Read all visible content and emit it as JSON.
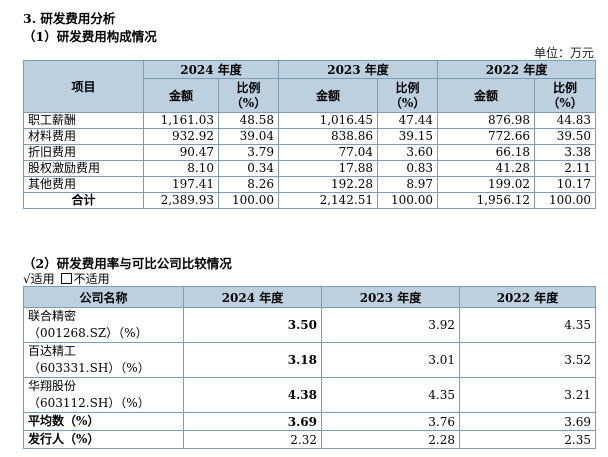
{
  "heading_main": "3.   研发费用分析",
  "heading_sub1": "（1）研发费用构成情况",
  "unit_label": "单位：万元",
  "table1": {
    "item_header": "项目",
    "years": [
      "2024 年度",
      "2023 年度",
      "2022 年度"
    ],
    "amount_header": "金额",
    "ratio_header": "比例（%）",
    "rows": [
      {
        "label": "职工薪酬",
        "v": [
          "1,161.03",
          "48.58",
          "1,016.45",
          "47.44",
          "876.98",
          "44.83"
        ]
      },
      {
        "label": "材料费用",
        "v": [
          "932.92",
          "39.04",
          "838.86",
          "39.15",
          "772.66",
          "39.50"
        ]
      },
      {
        "label": "折旧费用",
        "v": [
          "90.47",
          "3.79",
          "77.04",
          "3.60",
          "66.18",
          "3.38"
        ]
      },
      {
        "label": "股权激励费用",
        "v": [
          "8.10",
          "0.34",
          "17.88",
          "0.83",
          "41.28",
          "2.11"
        ]
      },
      {
        "label": "其他费用",
        "v": [
          "197.41",
          "8.26",
          "192.28",
          "8.97",
          "199.02",
          "10.17"
        ]
      },
      {
        "label": "合计",
        "v": [
          "2,389.93",
          "100.00",
          "2,142.51",
          "100.00",
          "1,956.12",
          "100.00"
        ]
      }
    ]
  },
  "heading_sub2": "（2）研发费用率与可比公司比较情况",
  "applicability": {
    "checked_mark": "√",
    "applicable": "适用",
    "not_applicable": "不适用"
  },
  "table2": {
    "company_header": "公司名称",
    "years": [
      "2024 年度",
      "2023 年度",
      "2022 年度"
    ],
    "rows": [
      {
        "name": "联合精密",
        "code": "（001268.SZ）（%）",
        "v": [
          "3.50",
          "3.92",
          "4.35"
        ]
      },
      {
        "name": "百达精工",
        "code": "（603331.SH）（%）",
        "v": [
          "3.18",
          "3.01",
          "3.52"
        ]
      },
      {
        "name": "华翔股份",
        "code": "（603112.SH）（%）",
        "v": [
          "4.38",
          "4.35",
          "3.21"
        ]
      }
    ],
    "average": {
      "label": "平均数（%）",
      "v": [
        "3.69",
        "3.76",
        "3.69"
      ]
    },
    "issuer": {
      "label": "发行人（%）",
      "v": [
        "2.32",
        "2.28",
        "2.35"
      ]
    }
  }
}
